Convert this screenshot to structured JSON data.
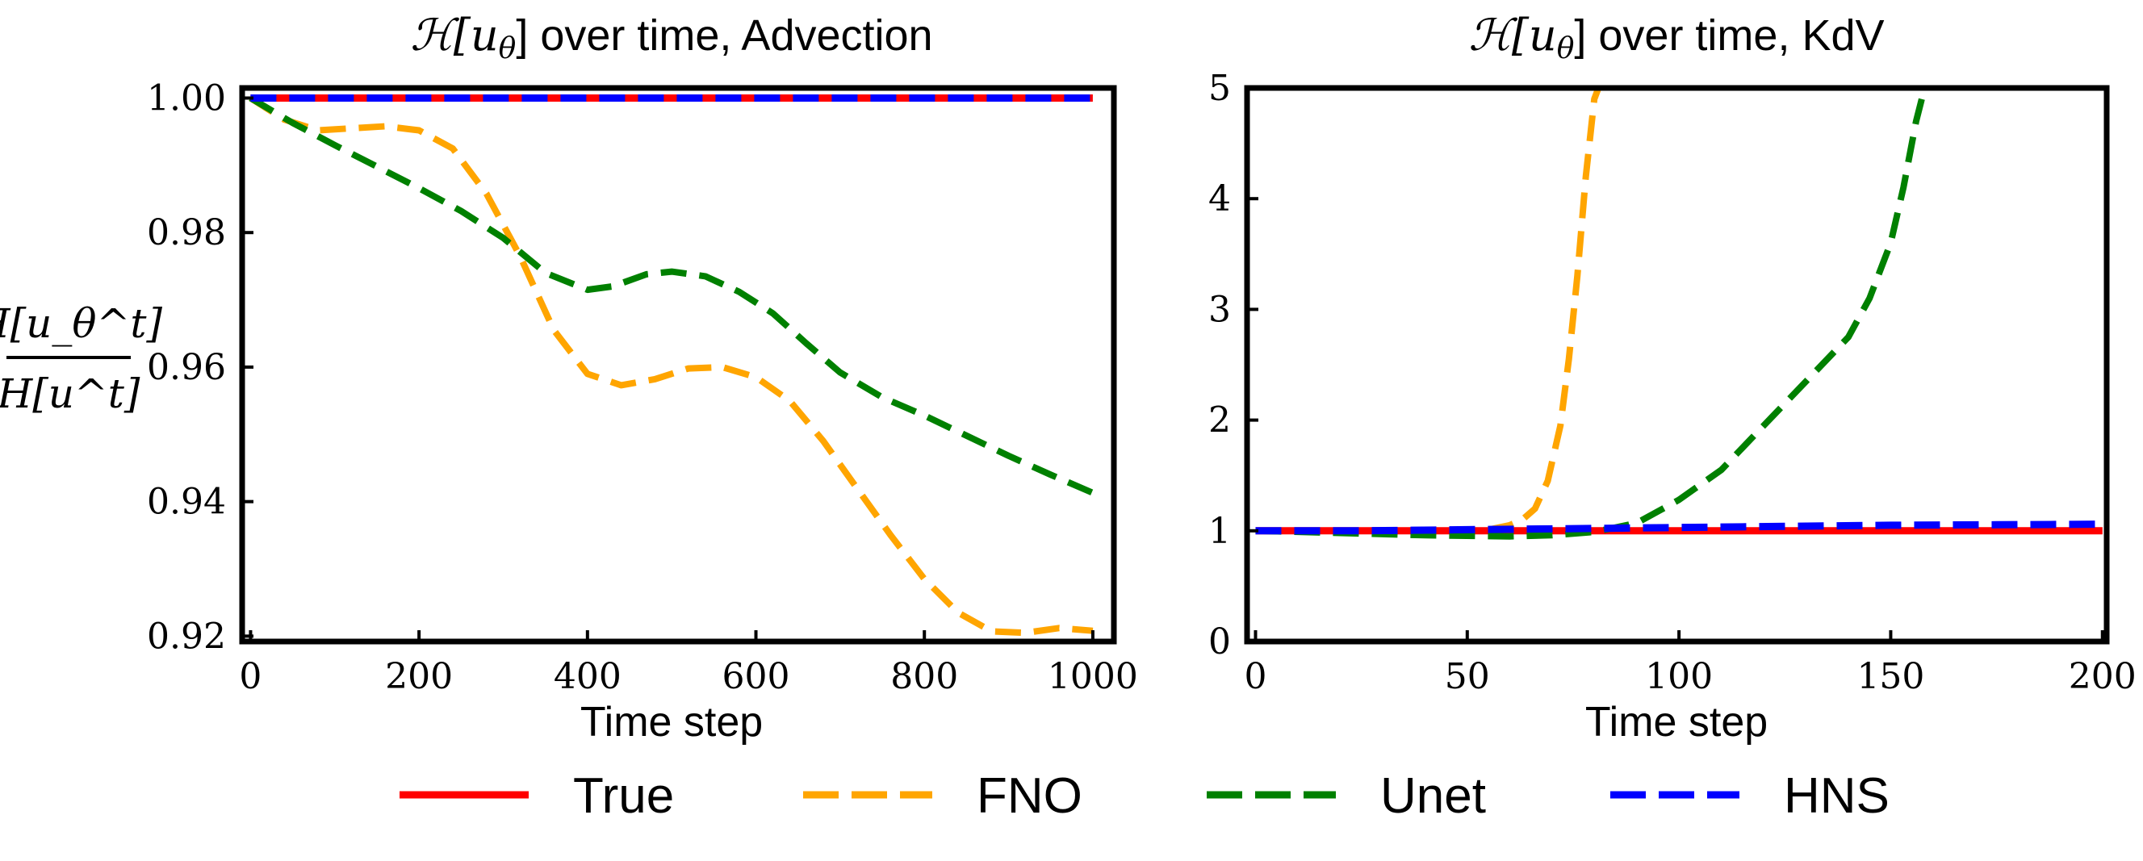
{
  "ylabel": {
    "numerator": "H[u_θ^t]",
    "denominator": "H[u^t]"
  },
  "colors": {
    "True": "#ff0000",
    "FNO": "#ffa500",
    "Unet": "#008000",
    "HNS": "#0000ff"
  },
  "legend": [
    {
      "name": "True",
      "style": "solid",
      "color": "#ff0000"
    },
    {
      "name": "FNO",
      "style": "dashed",
      "color": "#ffa500"
    },
    {
      "name": "Unet",
      "style": "dashed",
      "color": "#008000"
    },
    {
      "name": "HNS",
      "style": "dashed",
      "color": "#0000ff"
    }
  ],
  "chart_data": [
    {
      "type": "line",
      "title": "H[u_θ] over time, Advection",
      "title_math": "ℋ[u",
      "title_sub": "θ",
      "title_rest": "] over time, Advection",
      "xlabel": "Time step",
      "xlim": [
        -10,
        1025
      ],
      "ylim": [
        0.9192,
        1.0015
      ],
      "xticks": [
        0,
        200,
        400,
        600,
        800,
        1000
      ],
      "yticks": [
        1.0,
        0.98,
        0.96,
        0.94,
        0.92
      ],
      "ytick_labels": [
        "1.00",
        "0.98",
        "0.96",
        "0.94",
        "0.92"
      ],
      "series": [
        {
          "name": "True",
          "x": [
            0,
            1000
          ],
          "y": [
            1.0,
            1.0
          ]
        },
        {
          "name": "HNS",
          "x": [
            0,
            1000
          ],
          "y": [
            1.0,
            1.0
          ]
        },
        {
          "name": "FNO",
          "x": [
            0,
            40,
            80,
            120,
            160,
            200,
            240,
            280,
            320,
            360,
            400,
            440,
            480,
            520,
            560,
            600,
            640,
            680,
            720,
            760,
            800,
            840,
            880,
            920,
            960,
            1000
          ],
          "y": [
            1.0,
            0.9968,
            0.9952,
            0.9955,
            0.9958,
            0.9952,
            0.9925,
            0.9858,
            0.9765,
            0.9655,
            0.959,
            0.9573,
            0.9582,
            0.9598,
            0.96,
            0.9585,
            0.955,
            0.949,
            0.942,
            0.935,
            0.9285,
            0.9235,
            0.9207,
            0.9205,
            0.9212,
            0.9208
          ]
        },
        {
          "name": "Unet",
          "x": [
            0,
            50,
            100,
            150,
            200,
            250,
            300,
            350,
            400,
            430,
            470,
            500,
            540,
            580,
            620,
            660,
            700,
            750,
            800,
            850,
            900,
            950,
            1000
          ],
          "y": [
            1.0,
            0.9963,
            0.993,
            0.9898,
            0.9866,
            0.9832,
            0.9792,
            0.974,
            0.9715,
            0.972,
            0.9738,
            0.9742,
            0.9735,
            0.9712,
            0.968,
            0.9635,
            0.9592,
            0.9555,
            0.9528,
            0.9498,
            0.9468,
            0.944,
            0.9413
          ]
        }
      ]
    },
    {
      "type": "line",
      "title": "H[u_θ] over time, KdV",
      "title_math": "ℋ[u",
      "title_sub": "θ",
      "title_rest": "] over time, KdV",
      "xlabel": "Time step",
      "xlim": [
        -2,
        201
      ],
      "ylim": [
        0,
        5
      ],
      "xticks": [
        0,
        50,
        100,
        150,
        200
      ],
      "yticks": [
        0,
        1,
        2,
        3,
        4,
        5
      ],
      "ytick_labels": [
        "0",
        "1",
        "2",
        "3",
        "4",
        "5"
      ],
      "series": [
        {
          "name": "True",
          "x": [
            0,
            200
          ],
          "y": [
            1.0,
            1.0
          ]
        },
        {
          "name": "HNS",
          "x": [
            0,
            25,
            50,
            75,
            100,
            125,
            150,
            175,
            200
          ],
          "y": [
            1.0,
            1.0,
            1.01,
            1.02,
            1.03,
            1.04,
            1.05,
            1.055,
            1.06
          ]
        },
        {
          "name": "FNO",
          "x": [
            0,
            20,
            40,
            55,
            60,
            63,
            66,
            69,
            72,
            74,
            76,
            78,
            80,
            81
          ],
          "y": [
            1.0,
            0.99,
            0.99,
            1.01,
            1.05,
            1.1,
            1.2,
            1.45,
            1.95,
            2.55,
            3.3,
            4.2,
            4.9,
            5.0
          ]
        },
        {
          "name": "Unet",
          "x": [
            0,
            20,
            40,
            60,
            70,
            80,
            90,
            100,
            110,
            120,
            130,
            140,
            145,
            150,
            153,
            156,
            158
          ],
          "y": [
            1.0,
            0.98,
            0.96,
            0.95,
            0.96,
            0.99,
            1.07,
            1.28,
            1.55,
            1.95,
            2.35,
            2.75,
            3.1,
            3.6,
            4.1,
            4.7,
            5.0
          ]
        }
      ]
    }
  ]
}
